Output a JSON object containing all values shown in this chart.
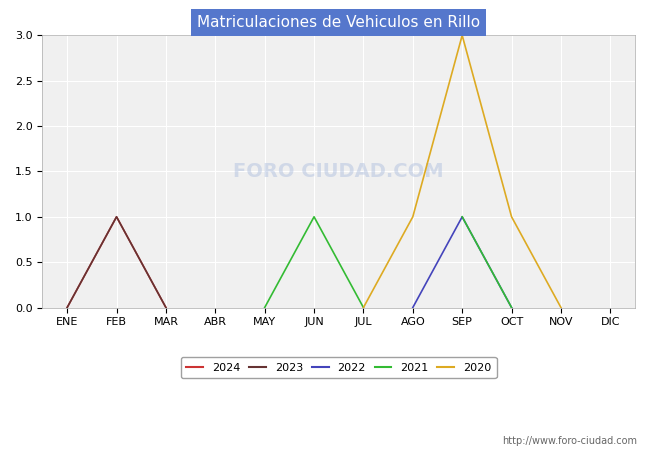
{
  "title": "Matriculaciones de Vehiculos en Rillo",
  "months": [
    "ENE",
    "FEB",
    "MAR",
    "ABR",
    "MAY",
    "JUN",
    "JUL",
    "AGO",
    "SEP",
    "OCT",
    "NOV",
    "DIC"
  ],
  "series": {
    "2024": {
      "values": [
        0,
        1,
        0,
        null,
        null,
        null,
        null,
        null,
        null,
        null,
        null,
        null
      ],
      "color": "#cc3333",
      "linewidth": 1.2
    },
    "2023": {
      "values": [
        0,
        1,
        0,
        null,
        null,
        null,
        null,
        null,
        null,
        null,
        null,
        null
      ],
      "color": "#663333",
      "linewidth": 1.2
    },
    "2022": {
      "values": [
        null,
        null,
        null,
        null,
        null,
        null,
        null,
        0,
        1,
        0,
        null,
        null
      ],
      "color": "#4444bb",
      "linewidth": 1.2
    },
    "2021": {
      "values": [
        null,
        null,
        null,
        null,
        0,
        1,
        0,
        null,
        1,
        0,
        null,
        null
      ],
      "color": "#33bb33",
      "linewidth": 1.2
    },
    "2020": {
      "values": [
        null,
        null,
        null,
        null,
        null,
        null,
        0,
        1,
        3,
        1,
        0,
        null
      ],
      "color": "#ddaa22",
      "linewidth": 1.2
    }
  },
  "ylim": [
    0,
    3.0
  ],
  "yticks": [
    0.0,
    0.5,
    1.0,
    1.5,
    2.0,
    2.5,
    3.0
  ],
  "title_bg_color": "#5577cc",
  "title_text_color": "#ffffff",
  "plot_bg_color": "#f0f0f0",
  "grid_color": "#ffffff",
  "fig_bg_color": "#ffffff",
  "watermark_text": "FORO CIUDAD.COM",
  "watermark_url": "http://www.foro-ciudad.com",
  "legend_years": [
    "2024",
    "2023",
    "2022",
    "2021",
    "2020"
  ],
  "legend_colors": [
    "#cc3333",
    "#663333",
    "#4444bb",
    "#33bb33",
    "#ddaa22"
  ]
}
